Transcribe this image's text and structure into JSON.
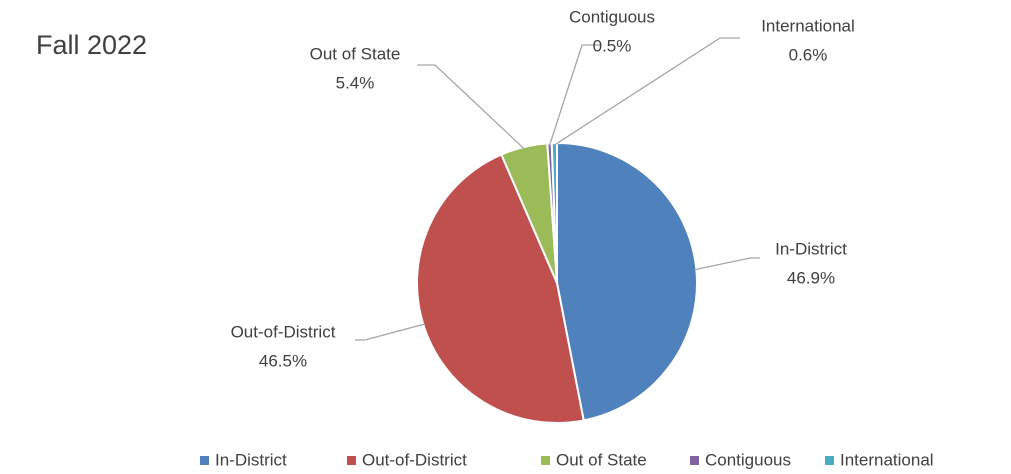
{
  "chart_data": {
    "type": "pie",
    "title": "Fall 2022",
    "categories": [
      "In-District",
      "Out-of-District",
      "Out of State",
      "Contiguous",
      "International"
    ],
    "values": [
      46.9,
      46.5,
      5.4,
      0.5,
      0.6
    ],
    "value_labels": [
      "46.9%",
      "46.5%",
      "5.4%",
      "0.5%",
      "0.6%"
    ],
    "colors": [
      "#4f81bd",
      "#c0504d",
      "#9bbb59",
      "#8064a2",
      "#4bacc6"
    ],
    "legend": "bottom"
  }
}
